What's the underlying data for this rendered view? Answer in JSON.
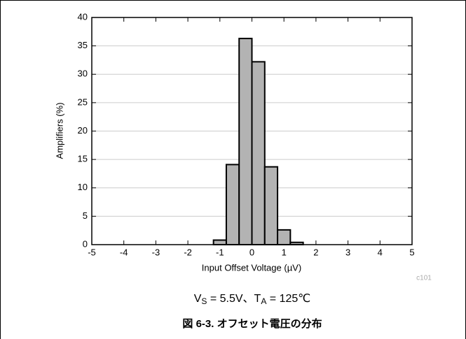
{
  "chart_data": {
    "type": "histogram",
    "xlabel": "Input Offset Voltage (µV)",
    "ylabel": "Amplifiers (%)",
    "bins": [
      -1.2,
      -0.8,
      -0.4,
      0,
      0.4,
      0.8,
      1.2,
      1.6
    ],
    "values": [
      0.8,
      14.1,
      36.3,
      32.2,
      13.7,
      2.6,
      0.4
    ],
    "color": "#b3b3b3",
    "xlim": [
      -5,
      5
    ],
    "xticks": [
      -5,
      -4,
      -3,
      -2,
      -1,
      0,
      1,
      2,
      3,
      4,
      5
    ],
    "ylim": [
      0,
      40
    ],
    "yticks": [
      0,
      5,
      10,
      15,
      20,
      25,
      30,
      35,
      40
    ],
    "grid": true,
    "annotation": "c101",
    "subtitle": [
      "V",
      "S",
      " = 5.5V、T",
      "A",
      " = 125℃"
    ],
    "caption": "図 6-3. オフセット電圧の分布"
  }
}
